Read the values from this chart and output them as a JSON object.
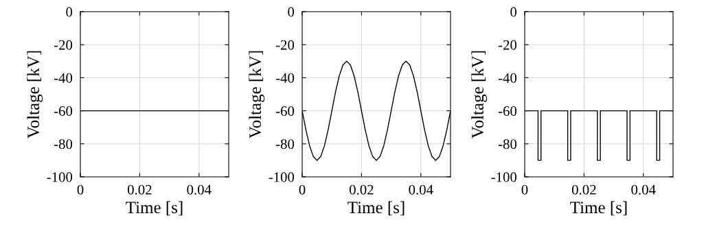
{
  "chart_data": [
    {
      "type": "line",
      "xlabel": "Time [s]",
      "ylabel": "Voltage [kV]",
      "xlim": [
        0,
        0.05
      ],
      "ylim": [
        -100,
        0
      ],
      "xticks": [
        0,
        0.02,
        0.04
      ],
      "yticks": [
        -100,
        -80,
        -60,
        -40,
        -20,
        0
      ],
      "grid": true,
      "series": [
        {
          "color": "#000000",
          "x": [
            0,
            0.05
          ],
          "values": [
            -60,
            -60
          ]
        }
      ]
    },
    {
      "type": "line",
      "xlabel": "Time [s]",
      "ylabel": "Voltage [kV]",
      "xlim": [
        0,
        0.05
      ],
      "ylim": [
        -100,
        0
      ],
      "xticks": [
        0,
        0.02,
        0.04
      ],
      "yticks": [
        -100,
        -80,
        -60,
        -40,
        -20,
        0
      ],
      "grid": true,
      "series": [
        {
          "color": "#000000",
          "x": [
            0,
            0.00125,
            0.0025,
            0.00375,
            0.005,
            0.00625,
            0.0075,
            0.00875,
            0.01,
            0.01125,
            0.0125,
            0.01375,
            0.015,
            0.01625,
            0.0175,
            0.01875,
            0.02,
            0.02125,
            0.0225,
            0.02375,
            0.025,
            0.02625,
            0.0275,
            0.02875,
            0.03,
            0.03125,
            0.0325,
            0.03375,
            0.035,
            0.03625,
            0.0375,
            0.03875,
            0.04,
            0.04125,
            0.0425,
            0.04375,
            0.045,
            0.04625,
            0.0475,
            0.04875,
            0.05
          ],
          "values": [
            -60,
            -71.5,
            -81.2,
            -87.7,
            -90,
            -87.7,
            -81.2,
            -71.5,
            -60,
            -48.5,
            -38.8,
            -32.3,
            -30,
            -32.3,
            -38.8,
            -48.5,
            -60,
            -71.5,
            -81.2,
            -87.7,
            -90,
            -87.7,
            -81.2,
            -71.5,
            -60,
            -48.5,
            -38.8,
            -32.3,
            -30,
            -32.3,
            -38.8,
            -48.5,
            -60,
            -71.5,
            -81.2,
            -87.7,
            -90,
            -87.7,
            -81.2,
            -71.5,
            -60
          ]
        }
      ]
    },
    {
      "type": "line",
      "xlabel": "Time [s]",
      "ylabel": "Voltage [kV]",
      "xlim": [
        0,
        0.05
      ],
      "ylim": [
        -100,
        0
      ],
      "xticks": [
        0,
        0.02,
        0.04
      ],
      "yticks": [
        -100,
        -80,
        -60,
        -40,
        -20,
        0
      ],
      "grid": true,
      "series": [
        {
          "color": "#000000",
          "x": [
            0,
            0.0045,
            0.0045,
            0.0055,
            0.0055,
            0.0145,
            0.0145,
            0.0155,
            0.0155,
            0.0245,
            0.0245,
            0.0255,
            0.0255,
            0.0345,
            0.0345,
            0.0355,
            0.0355,
            0.0445,
            0.0445,
            0.0455,
            0.0455,
            0.05
          ],
          "values": [
            -60,
            -60,
            -90,
            -90,
            -60,
            -60,
            -90,
            -90,
            -60,
            -60,
            -90,
            -90,
            -60,
            -60,
            -90,
            -90,
            -60,
            -60,
            -90,
            -90,
            -60,
            -60
          ]
        }
      ]
    }
  ]
}
